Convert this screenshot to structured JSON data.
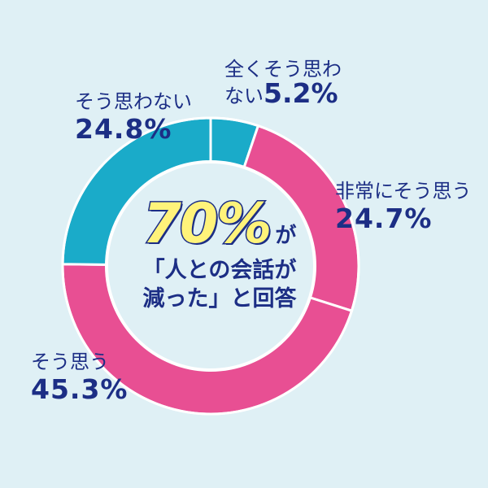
{
  "chart_data": {
    "type": "pie",
    "style": "donut",
    "start": "12 o'clock, clockwise",
    "slices": [
      {
        "label": "全くそう思わない",
        "value": 5.2,
        "value_label": "5.2%",
        "color": "#1aabc9"
      },
      {
        "label": "非常にそう思う",
        "value": 24.7,
        "value_label": "24.7%",
        "color": "#e84f93"
      },
      {
        "label": "そう思う",
        "value": 45.3,
        "value_label": "45.3%",
        "color": "#e84f93"
      },
      {
        "label": "そう思わない",
        "value": 24.8,
        "value_label": "24.8%",
        "color": "#1aabc9"
      }
    ],
    "center": {
      "big": "70%",
      "suffix": "が",
      "line1": "「人との会話が",
      "line2": "減った」と回答"
    },
    "colors": {
      "background": "#dff0f5",
      "text": "#1c2e85",
      "highlight": "#fff37a",
      "inner_circle": "#dff0f5",
      "separator": "#ffffff"
    }
  }
}
